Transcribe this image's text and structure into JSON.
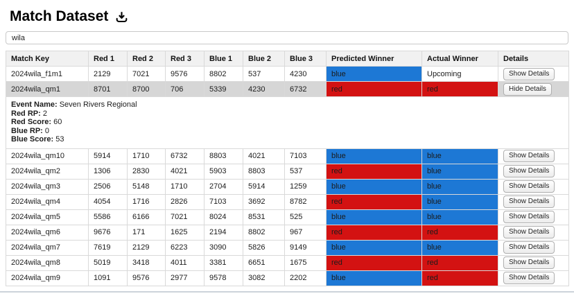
{
  "page": {
    "title": "Match Dataset"
  },
  "search": {
    "value": "wila"
  },
  "colors": {
    "blue": "#1d78d5",
    "red": "#d31212"
  },
  "table": {
    "headers": [
      "Match Key",
      "Red 1",
      "Red 2",
      "Red 3",
      "Blue 1",
      "Blue 2",
      "Blue 3",
      "Predicted Winner",
      "Actual Winner",
      "Details"
    ],
    "rows": [
      {
        "match_key": "2024wila_f1m1",
        "red1": "2129",
        "red2": "7021",
        "red3": "9576",
        "blue1": "8802",
        "blue2": "537",
        "blue3": "4230",
        "predicted": {
          "label": "blue",
          "color": "blue"
        },
        "actual": {
          "label": "Upcoming",
          "color": "none"
        },
        "details_button": "Show Details",
        "expanded": false
      },
      {
        "match_key": "2024wila_qm1",
        "red1": "8701",
        "red2": "8700",
        "red3": "706",
        "blue1": "5339",
        "blue2": "4230",
        "blue3": "6732",
        "predicted": {
          "label": "red",
          "color": "red"
        },
        "actual": {
          "label": "red",
          "color": "red"
        },
        "details_button": "Hide Details",
        "expanded": true,
        "details": {
          "fields": [
            {
              "label": "Event Name",
              "value": "Seven Rivers Regional"
            },
            {
              "label": "Red RP",
              "value": "2"
            },
            {
              "label": "Red Score",
              "value": "60"
            },
            {
              "label": "Blue RP",
              "value": "0"
            },
            {
              "label": "Blue Score",
              "value": "53"
            }
          ]
        }
      },
      {
        "match_key": "2024wila_qm10",
        "red1": "5914",
        "red2": "1710",
        "red3": "6732",
        "blue1": "8803",
        "blue2": "4021",
        "blue3": "7103",
        "predicted": {
          "label": "blue",
          "color": "blue"
        },
        "actual": {
          "label": "blue",
          "color": "blue"
        },
        "details_button": "Show Details",
        "expanded": false
      },
      {
        "match_key": "2024wila_qm2",
        "red1": "1306",
        "red2": "2830",
        "red3": "4021",
        "blue1": "5903",
        "blue2": "8803",
        "blue3": "537",
        "predicted": {
          "label": "red",
          "color": "red"
        },
        "actual": {
          "label": "blue",
          "color": "blue"
        },
        "details_button": "Show Details",
        "expanded": false
      },
      {
        "match_key": "2024wila_qm3",
        "red1": "2506",
        "red2": "5148",
        "red3": "1710",
        "blue1": "2704",
        "blue2": "5914",
        "blue3": "1259",
        "predicted": {
          "label": "blue",
          "color": "blue"
        },
        "actual": {
          "label": "blue",
          "color": "blue"
        },
        "details_button": "Show Details",
        "expanded": false
      },
      {
        "match_key": "2024wila_qm4",
        "red1": "4054",
        "red2": "1716",
        "red3": "2826",
        "blue1": "7103",
        "blue2": "3692",
        "blue3": "8782",
        "predicted": {
          "label": "red",
          "color": "red"
        },
        "actual": {
          "label": "blue",
          "color": "blue"
        },
        "details_button": "Show Details",
        "expanded": false
      },
      {
        "match_key": "2024wila_qm5",
        "red1": "5586",
        "red2": "6166",
        "red3": "7021",
        "blue1": "8024",
        "blue2": "8531",
        "blue3": "525",
        "predicted": {
          "label": "blue",
          "color": "blue"
        },
        "actual": {
          "label": "blue",
          "color": "blue"
        },
        "details_button": "Show Details",
        "expanded": false
      },
      {
        "match_key": "2024wila_qm6",
        "red1": "9676",
        "red2": "171",
        "red3": "1625",
        "blue1": "2194",
        "blue2": "8802",
        "blue3": "967",
        "predicted": {
          "label": "red",
          "color": "red"
        },
        "actual": {
          "label": "red",
          "color": "red"
        },
        "details_button": "Show Details",
        "expanded": false
      },
      {
        "match_key": "2024wila_qm7",
        "red1": "7619",
        "red2": "2129",
        "red3": "6223",
        "blue1": "3090",
        "blue2": "5826",
        "blue3": "9149",
        "predicted": {
          "label": "blue",
          "color": "blue"
        },
        "actual": {
          "label": "blue",
          "color": "blue"
        },
        "details_button": "Show Details",
        "expanded": false
      },
      {
        "match_key": "2024wila_qm8",
        "red1": "5019",
        "red2": "3418",
        "red3": "4011",
        "blue1": "3381",
        "blue2": "6651",
        "blue3": "1675",
        "predicted": {
          "label": "red",
          "color": "red"
        },
        "actual": {
          "label": "red",
          "color": "red"
        },
        "details_button": "Show Details",
        "expanded": false
      },
      {
        "match_key": "2024wila_qm9",
        "red1": "1091",
        "red2": "9576",
        "red3": "2977",
        "blue1": "9578",
        "blue2": "3082",
        "blue3": "2202",
        "predicted": {
          "label": "blue",
          "color": "blue"
        },
        "actual": {
          "label": "red",
          "color": "red"
        },
        "details_button": "Show Details",
        "expanded": false
      }
    ]
  }
}
